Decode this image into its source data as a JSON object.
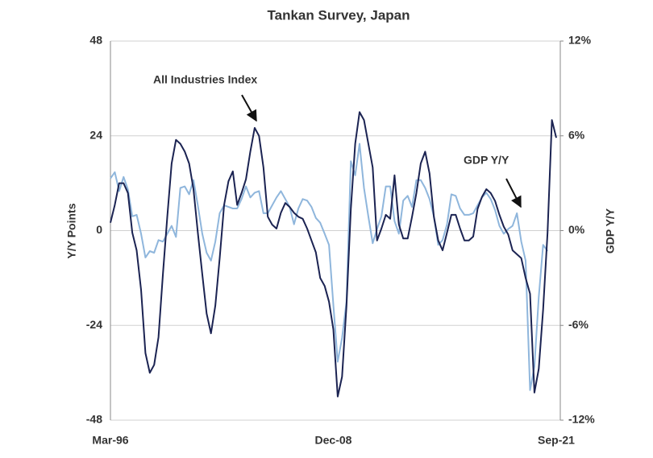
{
  "chart_data": {
    "type": "line",
    "title": "Tankan  Survey, Japan",
    "y_label": "Y/Y Points",
    "y2_label": "GDP  Y/Y",
    "annotations": [
      "All Industries Index",
      "GDP  Y/Y"
    ],
    "categories": [
      "Mar-96",
      null,
      null,
      null,
      null,
      null,
      null,
      null,
      null,
      null,
      null,
      null,
      null,
      null,
      null,
      null,
      null,
      null,
      null,
      null,
      null,
      null,
      null,
      null,
      null,
      null,
      null,
      null,
      null,
      null,
      null,
      null,
      null,
      null,
      null,
      null,
      null,
      null,
      null,
      null,
      null,
      null,
      null,
      null,
      null,
      null,
      null,
      null,
      null,
      null,
      null,
      "Dec-08",
      null,
      null,
      null,
      null,
      null,
      null,
      null,
      null,
      null,
      null,
      null,
      null,
      null,
      null,
      null,
      null,
      null,
      null,
      null,
      null,
      null,
      null,
      null,
      null,
      null,
      null,
      null,
      null,
      null,
      null,
      null,
      null,
      null,
      null,
      null,
      null,
      null,
      null,
      null,
      null,
      null,
      null,
      null,
      null,
      null,
      null,
      null,
      null,
      null,
      null,
      "Sep-21"
    ],
    "series": [
      {
        "name": "All Industries Index",
        "color": "#1b2352",
        "axis": "y",
        "values": [
          2,
          6.5,
          12,
          12,
          9.5,
          -0.5,
          -5,
          -15,
          -31,
          -36,
          -34,
          -27,
          -11,
          3.5,
          17,
          23,
          22,
          20,
          17,
          10.5,
          -0.5,
          -11,
          -21,
          -26,
          -19,
          -7,
          6.5,
          12.5,
          15,
          6.5,
          9.5,
          13,
          20,
          26,
          24,
          16,
          3.5,
          1.5,
          0.5,
          4.5,
          7,
          6,
          4.5,
          3.5,
          3,
          0.5,
          -2.5,
          -5.5,
          -12,
          -14,
          -18,
          -25,
          -42,
          -37,
          -19,
          5.5,
          22,
          30,
          28,
          22,
          16,
          -2.5,
          0.5,
          4,
          3,
          14,
          1.5,
          -2,
          -2,
          3.5,
          9.5,
          17,
          20,
          14.5,
          3.5,
          -2.5,
          -5,
          -0.5,
          4,
          4,
          0.5,
          -2.5,
          -2.5,
          -1.5,
          5.5,
          8.5,
          10.5,
          9.5,
          7.5,
          4,
          1,
          -1,
          -5,
          -6,
          -7,
          -12,
          -16,
          -41,
          -35,
          -20,
          -0.5,
          28,
          23.5
        ]
      },
      {
        "name": "GDP  Y/Y",
        "color": "#8fb6dc",
        "axis": "y2",
        "values": [
          3.3,
          3.7,
          2.5,
          3.4,
          2.6,
          0.9,
          1.0,
          -0.2,
          -1.7,
          -1.3,
          -1.4,
          -0.6,
          -0.7,
          -0.2,
          0.3,
          -0.4,
          2.7,
          2.8,
          2.3,
          3.2,
          1.6,
          -0.2,
          -1.4,
          -1.9,
          -0.7,
          1.1,
          1.6,
          1.5,
          1.4,
          1.4,
          2.0,
          2.8,
          2.1,
          2.4,
          2.5,
          1.1,
          1.1,
          1.6,
          2.1,
          2.5,
          2.0,
          1.5,
          0.4,
          1.4,
          2.0,
          1.9,
          1.5,
          0.8,
          0.5,
          -0.2,
          -0.9,
          -4.7,
          -8.3,
          -6.8,
          -4.5,
          4.4,
          3.5,
          5.5,
          2.7,
          0.9,
          -0.8,
          0.1,
          0.9,
          2.8,
          2.8,
          0.6,
          -0.2,
          1.9,
          2.2,
          1.5,
          3.2,
          3.2,
          2.7,
          2.0,
          0.9,
          -0.9,
          -0.6,
          0.4,
          2.3,
          2.2,
          1.4,
          1.0,
          1.0,
          1.1,
          1.6,
          2.1,
          2.4,
          2.0,
          1.3,
          0.3,
          -0.2,
          0.1,
          0.3,
          1.1,
          -0.7,
          -1.9,
          -10.1,
          -8.6,
          -4.2,
          -0.9,
          -1.3,
          null,
          null
        ]
      }
    ],
    "ylim": [
      -48,
      48
    ],
    "yticks": [
      -48,
      -24,
      0,
      24,
      48
    ],
    "y2lim": [
      -12,
      12
    ],
    "y2ticks": [
      {
        "value": -12,
        "label": "-12%"
      },
      {
        "value": -6,
        "label": "-6%"
      },
      {
        "value": 0,
        "label": "0%"
      },
      {
        "value": 6,
        "label": "6%"
      },
      {
        "value": 12,
        "label": "12%"
      }
    ],
    "grid": true
  }
}
